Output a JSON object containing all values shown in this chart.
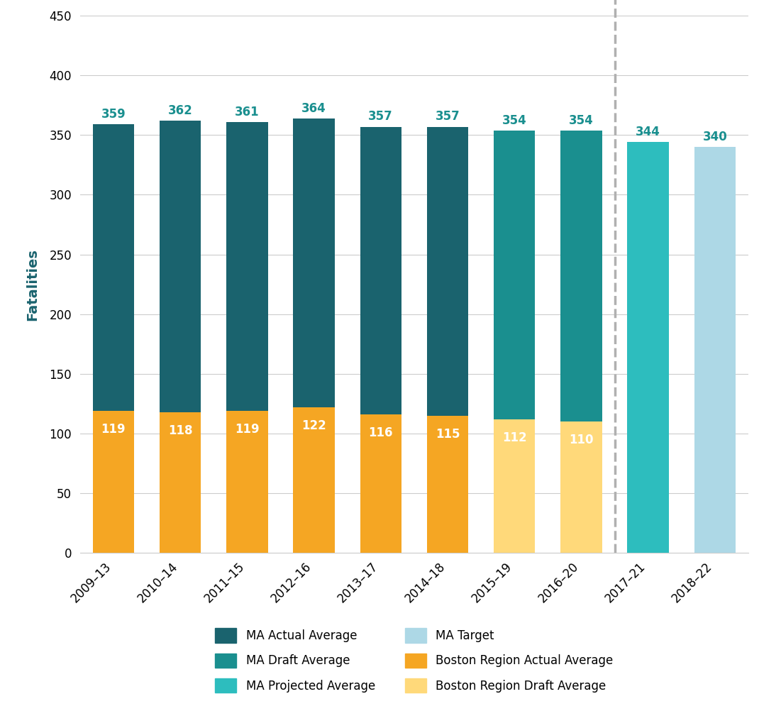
{
  "categories": [
    "2009–13",
    "2010–14",
    "2011–15",
    "2012–16",
    "2013–17",
    "2014–18",
    "2015–19",
    "2016–20",
    "2017–21",
    "2018–22"
  ],
  "ma_values": [
    359,
    362,
    361,
    364,
    357,
    357,
    354,
    354,
    344,
    340
  ],
  "boston_values": [
    119,
    118,
    119,
    122,
    116,
    115,
    112,
    110,
    null,
    null
  ],
  "bar_types": [
    "actual",
    "actual",
    "actual",
    "actual",
    "actual",
    "actual",
    "draft",
    "draft",
    "projected",
    "target"
  ],
  "boston_types": [
    "actual",
    "actual",
    "actual",
    "actual",
    "actual",
    "actual",
    "draft",
    "draft",
    null,
    null
  ],
  "colors": {
    "ma_actual": "#1a636e",
    "ma_draft": "#1a8f8f",
    "ma_projected": "#2dbdbe",
    "ma_target": "#add8e6",
    "boston_actual": "#f5a623",
    "boston_draft": "#ffd97a"
  },
  "label_color_above": "#1a8f8f",
  "label_color_projected": "#1a8f8f",
  "ylabel": "Fatalities",
  "ylim": [
    0,
    450
  ],
  "yticks": [
    0,
    50,
    100,
    150,
    200,
    250,
    300,
    350,
    400,
    450
  ],
  "dashed_line_between": [
    7,
    8
  ],
  "background_color": "#ffffff",
  "grid_color": "#cccccc",
  "legend_items": [
    {
      "label": "MA Actual Average",
      "color": "#1a636e"
    },
    {
      "label": "MA Draft Average",
      "color": "#1a8f8f"
    },
    {
      "label": "MA Projected Average",
      "color": "#2dbdbe"
    },
    {
      "label": "MA Target",
      "color": "#add8e6"
    },
    {
      "label": "Boston Region Actual Average",
      "color": "#f5a623"
    },
    {
      "label": "Boston Region Draft Average",
      "color": "#ffd97a"
    }
  ]
}
